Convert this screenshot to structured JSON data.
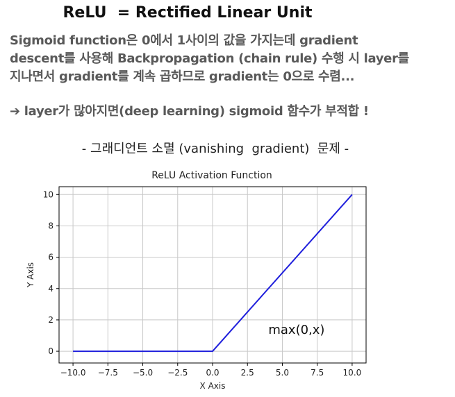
{
  "slide": {
    "title": "ReLU  = Rectified Linear Unit",
    "paragraph_lines": [
      "Sigmoid function은 0에서 1사이의 값을 가지는데 gradient",
      "descent를 사용해 Backpropagation (chain rule) 수행 시 layer를",
      "지나면서 gradient를 계속 곱하므로 gradient는 0으로 수렴..."
    ],
    "bullet_arrow": "➔",
    "bullet_text": "layer가 많아지면(deep learning)  sigmoid 함수가 부적합 !",
    "subtitle": "- 그래디언트 소멸 (vanishing  gradient)  문제 -"
  },
  "chart_data": {
    "type": "line",
    "title": "ReLU Activation Function",
    "xlabel": "X Axis",
    "ylabel": "Y Axis",
    "xlim": [
      -11,
      11
    ],
    "ylim": [
      -0.75,
      10.5
    ],
    "xticks": [
      -10.0,
      -7.5,
      -5.0,
      -2.5,
      0.0,
      2.5,
      5.0,
      7.5,
      10.0
    ],
    "xtick_labels": [
      "−10.0",
      "−7.5",
      "−5.0",
      "−2.5",
      "0.0",
      "2.5",
      "5.0",
      "7.5",
      "10.0"
    ],
    "yticks": [
      0,
      2,
      4,
      6,
      8,
      10
    ],
    "ytick_labels": [
      "0",
      "2",
      "4",
      "6",
      "8",
      "10"
    ],
    "grid": true,
    "series": [
      {
        "color": "#1f1fdc",
        "x": [
          -10,
          0,
          10
        ],
        "y": [
          0,
          0,
          10
        ]
      }
    ],
    "annotation": {
      "text": "max(0,x)",
      "x": 4,
      "y": 1.1
    }
  }
}
